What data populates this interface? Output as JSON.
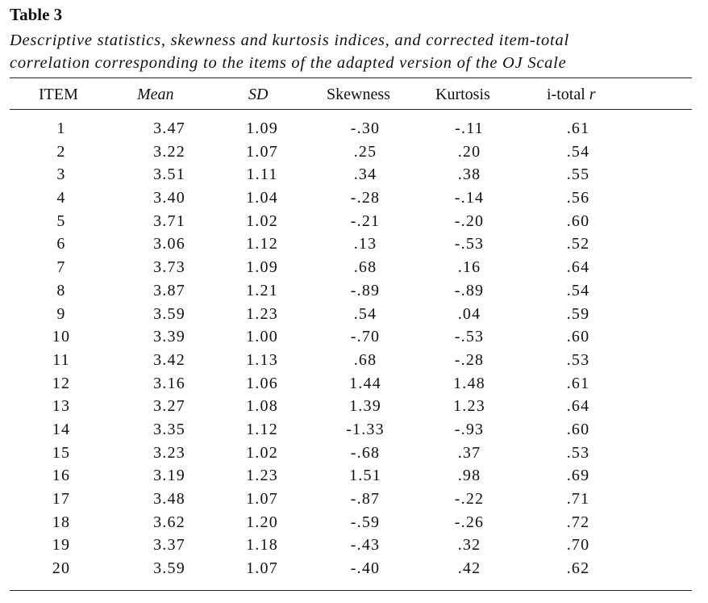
{
  "table_label": "Table 3",
  "caption_lines": [
    "Descriptive statistics, skewness and kurtosis indices, and corrected item-total",
    "correlation corresponding to the items of the adapted version of the OJ Scale"
  ],
  "headers": {
    "item": "ITEM",
    "mean": "Mean",
    "sd": "SD",
    "skewness": "Skewness",
    "kurtosis": "Kurtosis",
    "itotal_prefix": "i-total ",
    "itotal_r": "r"
  },
  "rows": [
    {
      "item": "1",
      "mean": "3.47",
      "sd": "1.09",
      "skewness": "-.30",
      "kurtosis": "-.11",
      "itotal": ".61"
    },
    {
      "item": "2",
      "mean": "3.22",
      "sd": "1.07",
      "skewness": ".25",
      "kurtosis": ".20",
      "itotal": ".54"
    },
    {
      "item": "3",
      "mean": "3.51",
      "sd": "1.11",
      "skewness": ".34",
      "kurtosis": ".38",
      "itotal": ".55"
    },
    {
      "item": "4",
      "mean": "3.40",
      "sd": "1.04",
      "skewness": "-.28",
      "kurtosis": "-.14",
      "itotal": ".56"
    },
    {
      "item": "5",
      "mean": "3.71",
      "sd": "1.02",
      "skewness": "-.21",
      "kurtosis": "-.20",
      "itotal": ".60"
    },
    {
      "item": "6",
      "mean": "3.06",
      "sd": "1.12",
      "skewness": ".13",
      "kurtosis": "-.53",
      "itotal": ".52"
    },
    {
      "item": "7",
      "mean": "3.73",
      "sd": "1.09",
      "skewness": ".68",
      "kurtosis": ".16",
      "itotal": ".64"
    },
    {
      "item": "8",
      "mean": "3.87",
      "sd": "1.21",
      "skewness": "-.89",
      "kurtosis": "-.89",
      "itotal": ".54"
    },
    {
      "item": "9",
      "mean": "3.59",
      "sd": "1.23",
      "skewness": ".54",
      "kurtosis": ".04",
      "itotal": ".59"
    },
    {
      "item": "10",
      "mean": "3.39",
      "sd": "1.00",
      "skewness": "-.70",
      "kurtosis": "-.53",
      "itotal": ".60"
    },
    {
      "item": "11",
      "mean": "3.42",
      "sd": "1.13",
      "skewness": ".68",
      "kurtosis": "-.28",
      "itotal": ".53"
    },
    {
      "item": "12",
      "mean": "3.16",
      "sd": "1.06",
      "skewness": "1.44",
      "kurtosis": "1.48",
      "itotal": ".61"
    },
    {
      "item": "13",
      "mean": "3.27",
      "sd": "1.08",
      "skewness": "1.39",
      "kurtosis": "1.23",
      "itotal": ".64"
    },
    {
      "item": "14",
      "mean": "3.35",
      "sd": "1.12",
      "skewness": "-1.33",
      "kurtosis": "-.93",
      "itotal": ".60"
    },
    {
      "item": "15",
      "mean": "3.23",
      "sd": "1.02",
      "skewness": "-.68",
      "kurtosis": ".37",
      "itotal": ".53"
    },
    {
      "item": "16",
      "mean": "3.19",
      "sd": "1.23",
      "skewness": "1.51",
      "kurtosis": ".98",
      "itotal": ".69"
    },
    {
      "item": "17",
      "mean": "3.48",
      "sd": "1.07",
      "skewness": "-.87",
      "kurtosis": "-.22",
      "itotal": ".71"
    },
    {
      "item": "18",
      "mean": "3.62",
      "sd": "1.20",
      "skewness": "-.59",
      "kurtosis": "-.26",
      "itotal": ".72"
    },
    {
      "item": "19",
      "mean": "3.37",
      "sd": "1.18",
      "skewness": "-.43",
      "kurtosis": ".32",
      "itotal": ".70"
    },
    {
      "item": "20",
      "mean": "3.59",
      "sd": "1.07",
      "skewness": "-.40",
      "kurtosis": ".42",
      "itotal": ".62"
    }
  ]
}
